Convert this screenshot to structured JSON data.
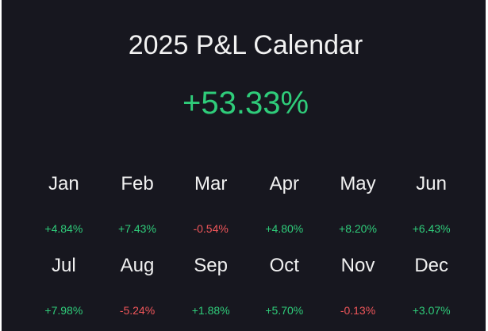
{
  "title": "2025 P&L Calendar",
  "total": "+53.33%",
  "colors": {
    "positive": "#2fcc7a",
    "negative": "#f0565a",
    "background": "#17171f"
  },
  "months": [
    {
      "label": "Jan",
      "pct": "+4.84%"
    },
    {
      "label": "Feb",
      "pct": "+7.43%"
    },
    {
      "label": "Mar",
      "pct": "-0.54%"
    },
    {
      "label": "Apr",
      "pct": "+4.80%"
    },
    {
      "label": "May",
      "pct": "+8.20%"
    },
    {
      "label": "Jun",
      "pct": "+6.43%"
    },
    {
      "label": "Jul",
      "pct": "+7.98%"
    },
    {
      "label": "Aug",
      "pct": "-5.24%"
    },
    {
      "label": "Sep",
      "pct": "+1.88%"
    },
    {
      "label": "Oct",
      "pct": "+5.70%"
    },
    {
      "label": "Nov",
      "pct": "-0.13%"
    },
    {
      "label": "Dec",
      "pct": "+3.07%"
    }
  ]
}
